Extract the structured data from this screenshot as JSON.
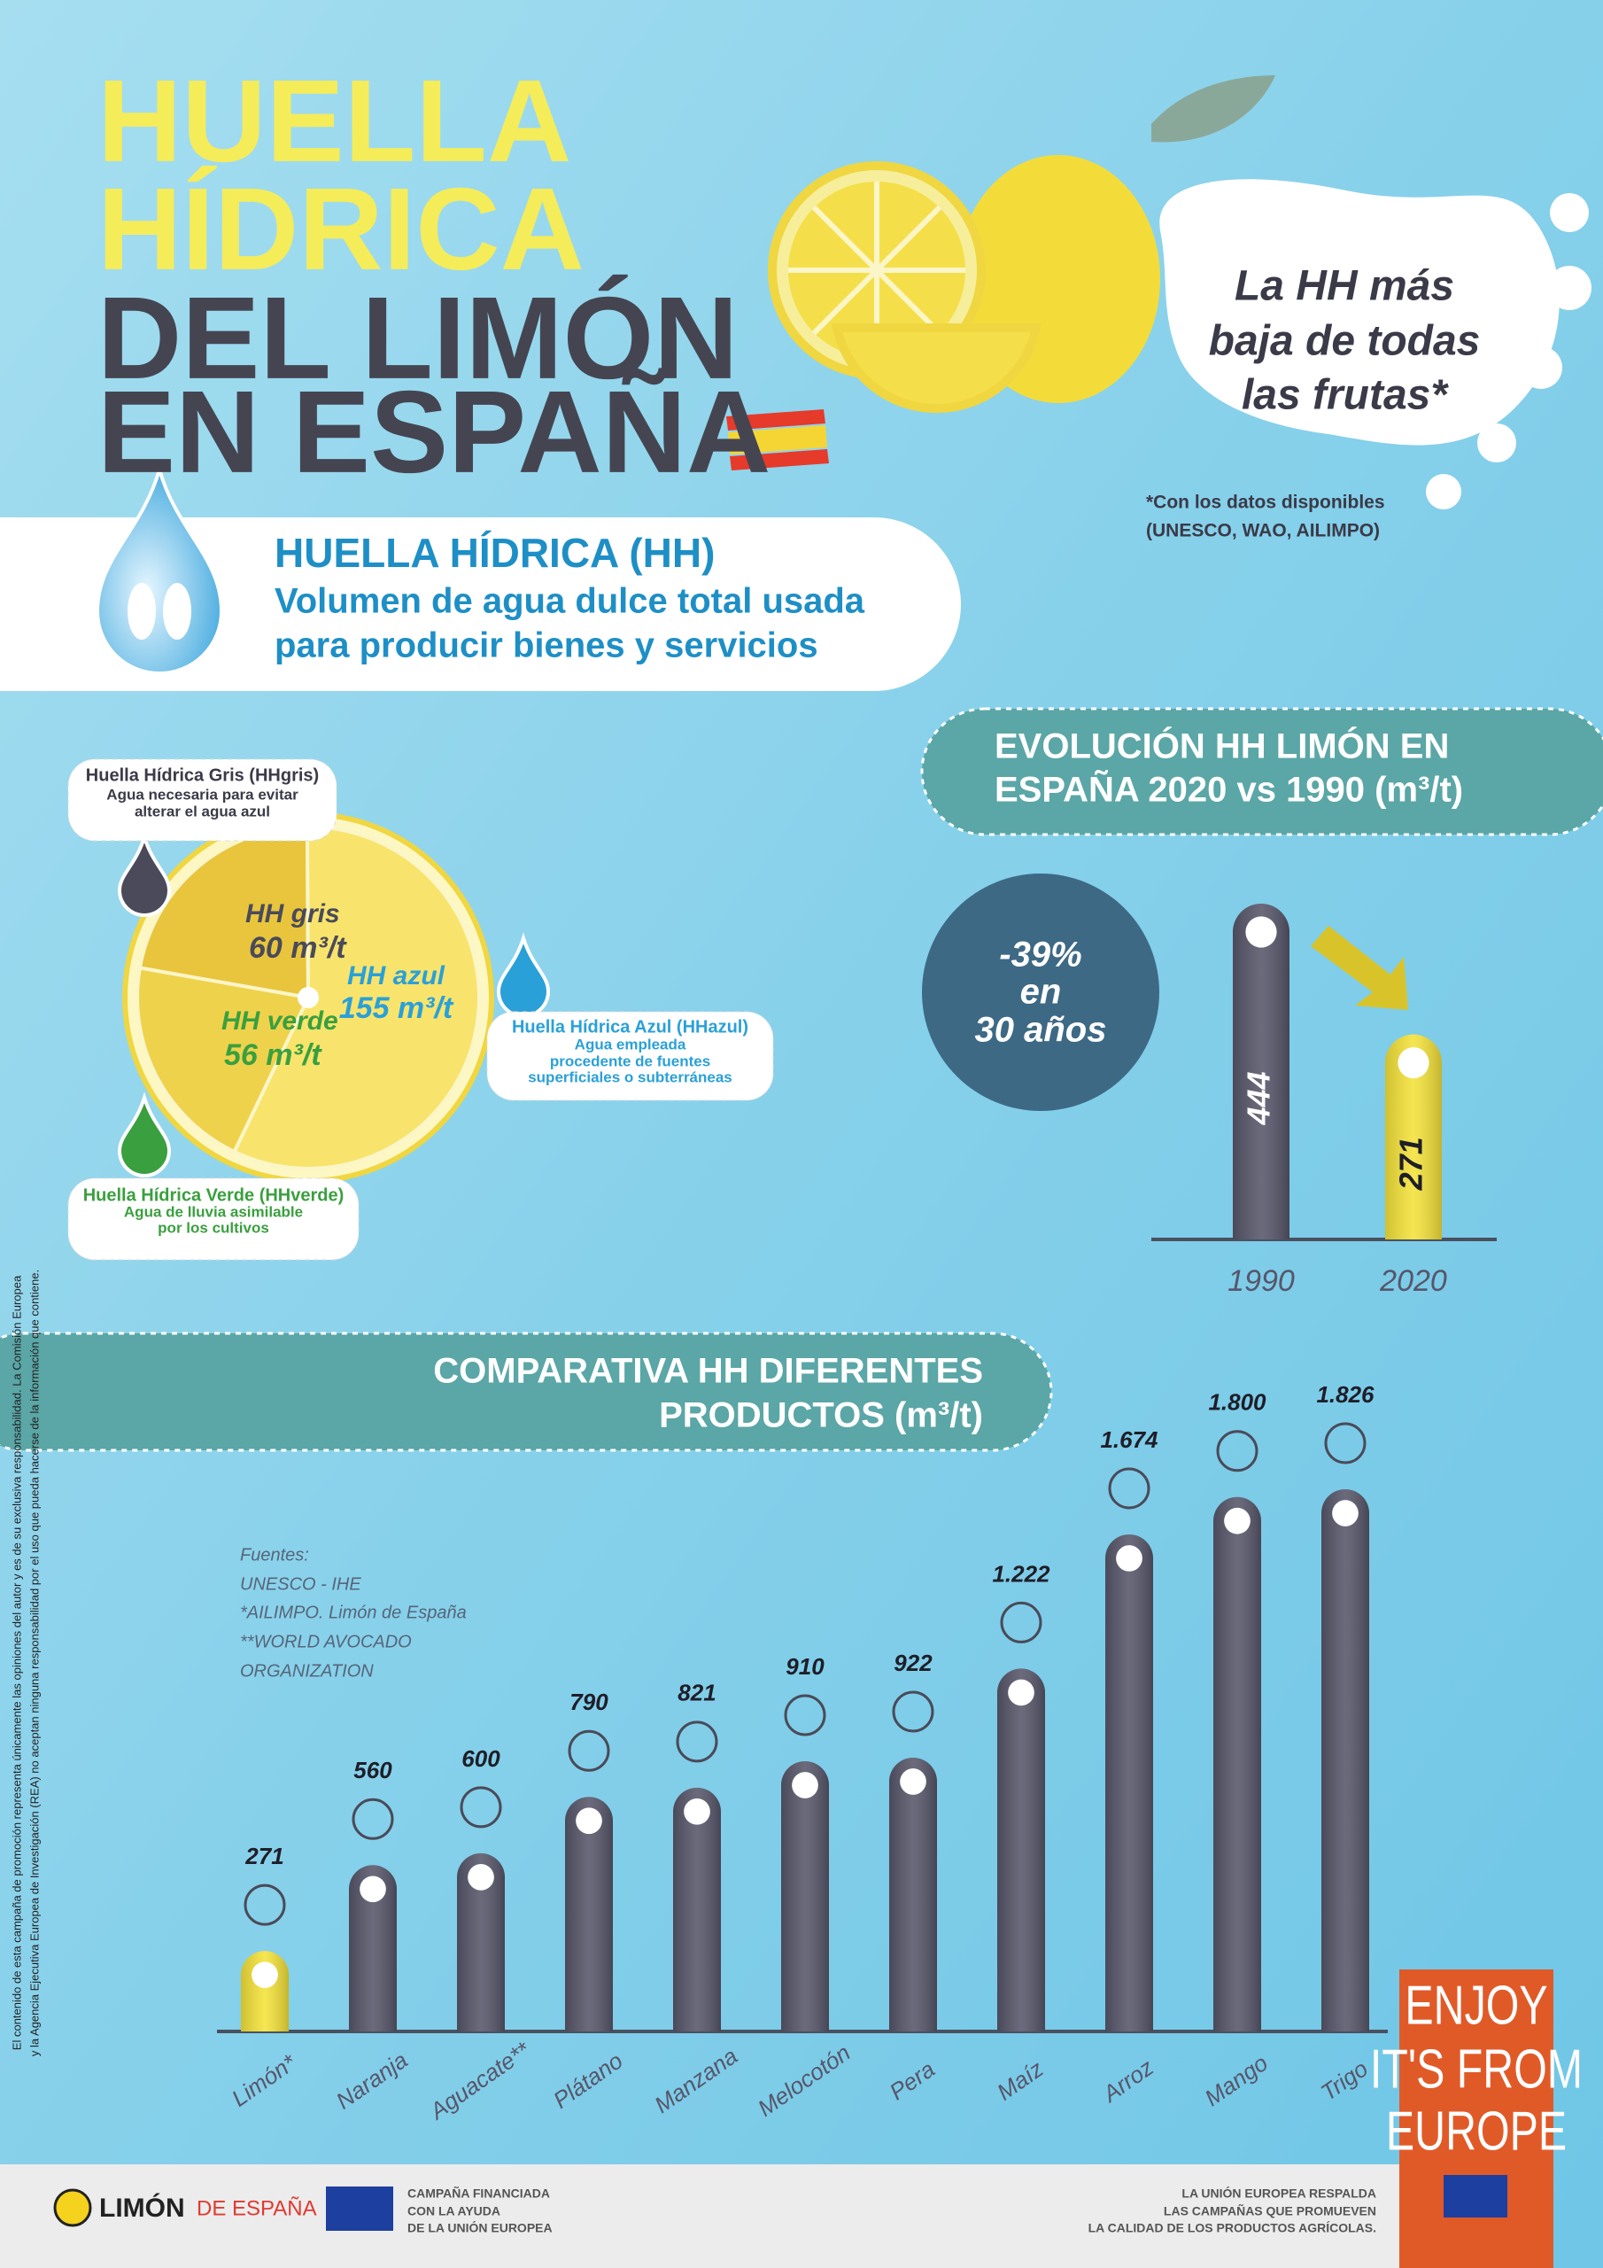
{
  "header": {
    "title_lines": [
      "HUELLA",
      "HÍDRICA",
      "DEL LIMÓN",
      "EN ESPAÑA"
    ],
    "tagline_lines": [
      "La HH más",
      "baja de todas",
      "las frutas*"
    ],
    "footnote_lines": [
      "*Con los datos disponibles",
      "(UNESCO, WAO, AILIMPO)"
    ]
  },
  "definition": {
    "title": "HUELLA HÍDRICA (HH)",
    "lines": [
      "Volumen de agua dulce total usada",
      "para producir bienes y servicios"
    ]
  },
  "chart_data": [
    {
      "type": "pie",
      "categories": [
        "HH gris",
        "HH azul",
        "HH verde"
      ],
      "values": [
        60,
        155,
        56
      ],
      "value_labels": [
        "60 m³/t",
        "155 m³/t",
        "56 m³/t"
      ],
      "colors": [
        "#e8c53c",
        "#f8e46c",
        "#efd24c"
      ],
      "label_colors": [
        "#4a4a5a",
        "#2aa0d8",
        "#3a9f3f"
      ],
      "descriptions": [
        {
          "title": "Huella Hídrica Gris (HHgris)",
          "lines": [
            "Agua necesaria para evitar",
            "alterar el agua azul"
          ]
        },
        {
          "title": "Huella Hídrica Azul (HHazul)",
          "lines": [
            "Agua empleada",
            "procedente de fuentes",
            "superficiales o subterráneas"
          ]
        },
        {
          "title": "Huella Hídrica Verde (HHverde)",
          "lines": [
            "Agua de lluvia asimilable",
            "por los cultivos"
          ]
        }
      ]
    },
    {
      "type": "bar",
      "title_lines": [
        "EVOLUCIÓN HH LIMÓN EN",
        "ESPAÑA 2020 vs 1990 (m³/t)"
      ],
      "categories": [
        "1990",
        "2020"
      ],
      "values": [
        444,
        271
      ],
      "colors": [
        "#56566a",
        "#f4e23a"
      ],
      "annotation_lines": [
        "-39%",
        "en",
        "30 años"
      ]
    },
    {
      "type": "bar",
      "title_lines": [
        "COMPARATIVA HH DIFERENTES",
        "PRODUCTOS (m³/t)"
      ],
      "categories": [
        "Limón*",
        "Naranja",
        "Aguacate**",
        "Plátano",
        "Manzana",
        "Melocotón",
        "Pera",
        "Maíz",
        "Arroz",
        "Mango",
        "Trigo"
      ],
      "values": [
        271,
        560,
        600,
        790,
        821,
        910,
        922,
        1222,
        1674,
        1800,
        1826
      ],
      "value_labels": [
        "271",
        "560",
        "600",
        "790",
        "821",
        "910",
        "922",
        "1.222",
        "1.674",
        "1.800",
        "1.826"
      ],
      "colors": [
        "#f4e23a",
        "#56566a",
        "#56566a",
        "#56566a",
        "#56566a",
        "#56566a",
        "#56566a",
        "#56566a",
        "#56566a",
        "#56566a",
        "#56566a"
      ],
      "notes": [
        "Fuentes:",
        "UNESCO - IHE",
        "*AILIMPO. Limón de España",
        "**WORLD AVOCADO",
        "ORGANIZATION"
      ]
    }
  ],
  "badge": {
    "lines": [
      "ENJOY",
      "IT'S FROM",
      "EUROPE"
    ]
  },
  "footer": {
    "logo": [
      "LIMÓN",
      "DE ESPAÑA"
    ],
    "campaign_lines": [
      "CAMPAÑA FINANCIADA",
      "CON LA AYUDA",
      "DE LA UNIÓN EUROPEA"
    ],
    "eu_lines": [
      "LA UNIÓN EUROPEA RESPALDA",
      "LAS CAMPAÑAS QUE PROMUEVEN",
      "LA CALIDAD DE LOS PRODUCTOS AGRÍCOLAS."
    ],
    "disclaimer_lines": [
      "El contenido de esta campaña de promoción representa únicamente las opiniones del autor y es de su exclusiva responsabilidad. La Comisión Europea",
      "y la Agencia Ejecutiva Europea de Investigación (REA) no aceptan ninguna responsabilidad por el uso que pueda hacerse de la información que contiene."
    ]
  }
}
